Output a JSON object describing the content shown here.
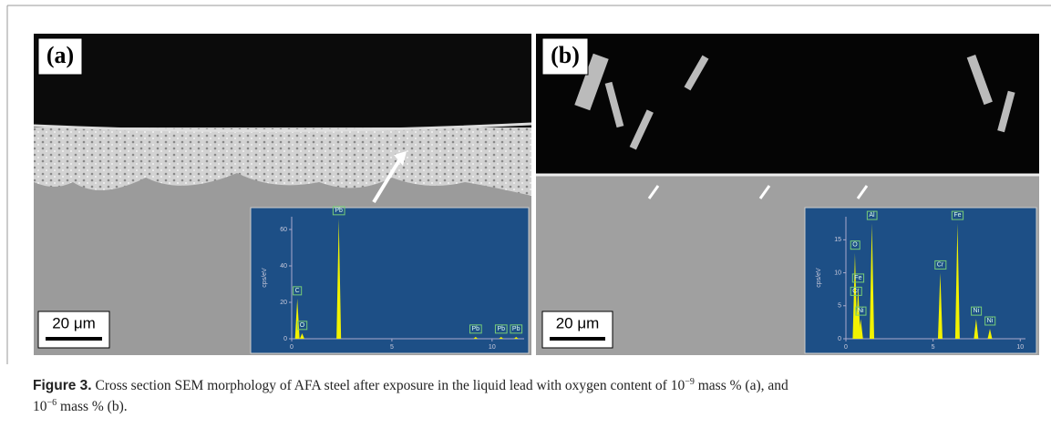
{
  "figure": {
    "panels": [
      {
        "label": "(a)",
        "scale_bar": "20 μm",
        "spectrum": {
          "ylabel": "cps/eV",
          "xlim": [
            0,
            11.6
          ],
          "ylim": [
            0,
            67
          ],
          "xticks": [
            0,
            5,
            10
          ],
          "yticks": [
            0,
            20,
            40,
            60
          ],
          "peaks": [
            {
              "label": "C",
              "x": 0.28,
              "y": 22
            },
            {
              "label": "O",
              "x": 0.52,
              "y": 3
            },
            {
              "label": "Pb",
              "x": 2.35,
              "y": 66
            },
            {
              "label": "Pb",
              "x": 9.18,
              "y": 1
            },
            {
              "label": "Pb",
              "x": 10.45,
              "y": 1
            },
            {
              "label": "Pb",
              "x": 11.2,
              "y": 1
            }
          ]
        }
      },
      {
        "label": "(b)",
        "scale_bar": "20 μm",
        "spectrum": {
          "ylabel": "cps/eV",
          "xlim": [
            0,
            10.3
          ],
          "ylim": [
            0,
            18.5
          ],
          "xticks": [
            0,
            5,
            10
          ],
          "yticks": [
            0,
            5,
            10,
            15
          ],
          "peaks": [
            {
              "label": "O",
              "x": 0.52,
              "y": 13
            },
            {
              "label": "Fe",
              "x": 0.7,
              "y": 8
            },
            {
              "label": "Cr",
              "x": 0.57,
              "y": 6
            },
            {
              "label": "Ni",
              "x": 0.85,
              "y": 3
            },
            {
              "label": "Al",
              "x": 1.49,
              "y": 17.5
            },
            {
              "label": "Cr",
              "x": 5.41,
              "y": 10
            },
            {
              "label": "Fe",
              "x": 6.4,
              "y": 17.5
            },
            {
              "label": "Ni",
              "x": 7.47,
              "y": 3
            },
            {
              "label": "Ni",
              "x": 8.26,
              "y": 1.5
            }
          ]
        }
      }
    ],
    "caption": {
      "label": "Figure 3.",
      "parts": [
        "Cross section SEM morphology of AFA steel after exposure in the liquid lead with oxygen content of 10",
        " mass % (a), and",
        "10",
        " mass % (b)."
      ],
      "exponents": [
        "−9",
        "−6"
      ]
    }
  }
}
